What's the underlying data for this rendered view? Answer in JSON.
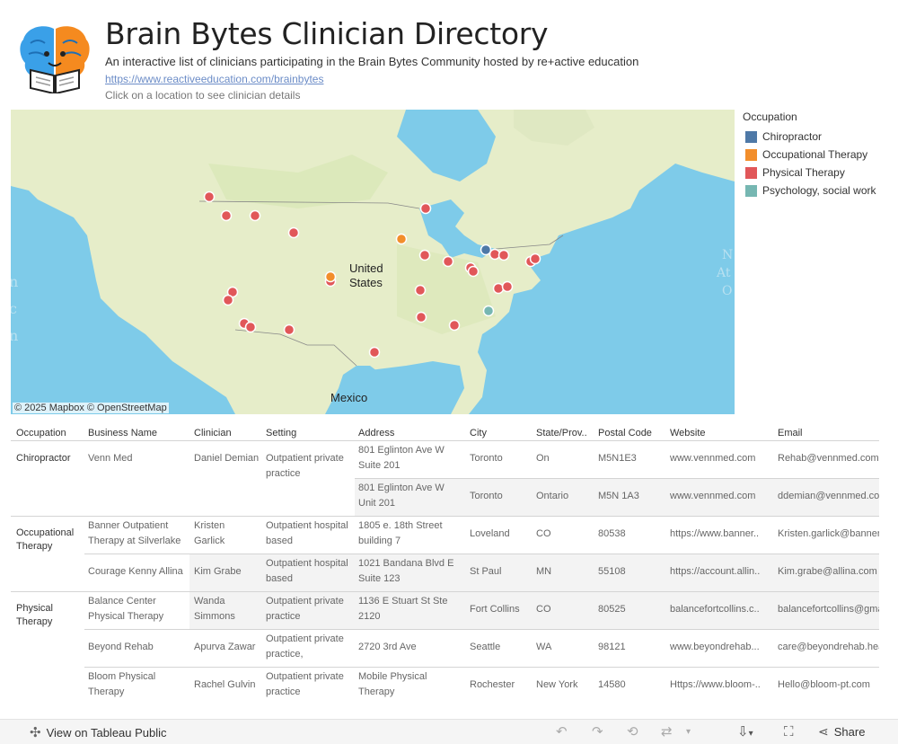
{
  "header": {
    "title": "Brain Bytes Clinician Directory",
    "subtitle": "An interactive list of clinicians participating in the Brain Bytes Community hosted by re+active education",
    "link": "https://www.reactiveeducation.com/brainbytes",
    "hint": "Click on a location to see clinician details"
  },
  "map": {
    "label_us": "United",
    "label_us2": "States",
    "label_mexico": "Mexico",
    "attribution": "© 2025 Mapbox  © OpenStreetMap"
  },
  "legend": {
    "title": "Occupation",
    "items": [
      {
        "label": "Chiropractor",
        "color": "#4e79a7"
      },
      {
        "label": "Occupational Therapy",
        "color": "#f28e2b"
      },
      {
        "label": "Physical Therapy",
        "color": "#e15759"
      },
      {
        "label": "Psychology, social work",
        "color": "#76b7b2"
      }
    ]
  },
  "table": {
    "headers": [
      "Occupation",
      "Business Name",
      "Clinician",
      "Setting",
      "Address",
      "City",
      "State/Prov..",
      "Postal Code",
      "Website",
      "Email"
    ],
    "groups": {
      "chiro": "Chiropractor",
      "ot": "Occupational Therapy",
      "pt": "Physical Therapy"
    },
    "rows": [
      {
        "business": "Venn Med",
        "clinician": "Daniel Demian",
        "setting": "Outpatient private practice",
        "address": "801 Eglinton Ave W Suite 201",
        "city": "Toronto",
        "state": "On",
        "postal": "M5N1E3",
        "website": "www.vennmed.com",
        "email": "Rehab@vennmed.com"
      },
      {
        "business": "",
        "clinician": "",
        "setting": "",
        "address": "801 Eglinton Ave W Unit 201",
        "city": "Toronto",
        "state": "Ontario",
        "postal": "M5N 1A3",
        "website": "www.vennmed.com",
        "email": "ddemian@vennmed.com"
      },
      {
        "business": "Banner Outpatient Therapy at Silverlake",
        "clinician": "Kristen Garlick",
        "setting": "Outpatient hospital based",
        "address": "1805 e. 18th Street building 7",
        "city": "Loveland",
        "state": "CO",
        "postal": "80538",
        "website": "https://www.banner..",
        "email": "Kristen.garlick@bannerhealth.com"
      },
      {
        "business": "Courage Kenny Allina",
        "clinician": "Kim Grabe",
        "setting": "Outpatient hospital based",
        "address": "1021 Bandana Blvd E Suite 123",
        "city": "St Paul",
        "state": "MN",
        "postal": "55108",
        "website": "https://account.allin..",
        "email": "Kim.grabe@allina.com"
      },
      {
        "business": "Balance Center Physical Therapy",
        "clinician": "Wanda Simmons",
        "setting": "Outpatient private practice",
        "address": "1136 E Stuart St  Ste 2120",
        "city": "Fort Collins",
        "state": "CO",
        "postal": "80525",
        "website": "balancefortcollins.c..",
        "email": "balancefortcollins@gmail.com"
      },
      {
        "business": "Beyond Rehab",
        "clinician": "Apurva Zawar",
        "setting": "Outpatient private practice,",
        "address": "2720 3rd Ave",
        "city": "Seattle",
        "state": "WA",
        "postal": "98121",
        "website": "www.beyondrehab...",
        "email": "care@beyondrehab.health"
      },
      {
        "business": "Bloom Physical Therapy",
        "clinician": "Rachel Gulvin",
        "setting": "Outpatient private practice",
        "address": "Mobile Physical Therapy",
        "city": "Rochester",
        "state": "New York",
        "postal": "14580",
        "website": "Https://www.bloom-..",
        "email": "Hello@bloom-pt.com"
      }
    ]
  },
  "toolbar": {
    "view_label": "View on Tableau Public",
    "share_label": "Share"
  }
}
